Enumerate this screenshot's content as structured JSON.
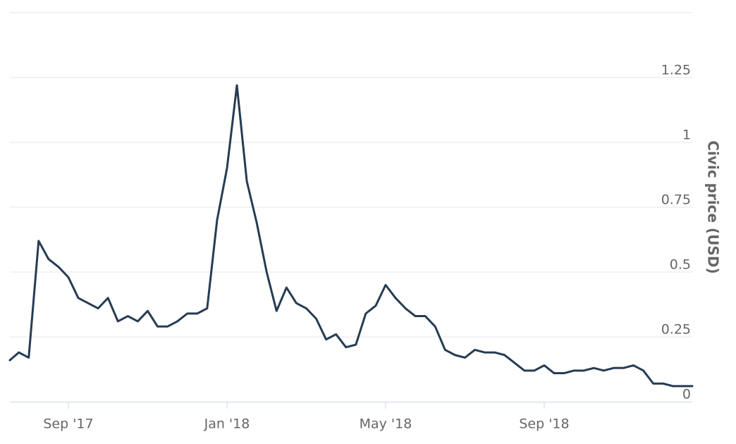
{
  "chart_data": {
    "type": "line",
    "y_axis_label": "Civic price (USD)",
    "categories": [
      null,
      null,
      null,
      null,
      null,
      null,
      "Sep '17",
      null,
      null,
      null,
      null,
      null,
      null,
      null,
      null,
      null,
      null,
      null,
      null,
      null,
      null,
      null,
      "Jan '18",
      null,
      null,
      null,
      null,
      null,
      null,
      null,
      null,
      null,
      null,
      null,
      null,
      null,
      null,
      null,
      "May '18",
      null,
      null,
      null,
      null,
      null,
      null,
      null,
      null,
      null,
      null,
      null,
      null,
      null,
      null,
      null,
      "Sep '18",
      null,
      null,
      null,
      null,
      null,
      null,
      null,
      null,
      null,
      null,
      null,
      null,
      null,
      null,
      null
    ],
    "series": [
      {
        "name": "Civic price (USD)",
        "color": "#263c53",
        "values": [
          0.16,
          0.19,
          0.17,
          0.62,
          0.55,
          0.52,
          0.48,
          0.4,
          0.38,
          0.36,
          0.4,
          0.31,
          0.33,
          0.31,
          0.35,
          0.29,
          0.29,
          0.31,
          0.34,
          0.34,
          0.36,
          0.7,
          0.9,
          1.22,
          0.85,
          0.69,
          0.5,
          0.35,
          0.44,
          0.38,
          0.36,
          0.32,
          0.24,
          0.26,
          0.21,
          0.22,
          0.34,
          0.37,
          0.45,
          0.4,
          0.36,
          0.33,
          0.33,
          0.29,
          0.2,
          0.18,
          0.17,
          0.2,
          0.19,
          0.19,
          0.18,
          0.15,
          0.12,
          0.12,
          0.14,
          0.11,
          0.11,
          0.12,
          0.12,
          0.13,
          0.12,
          0.13,
          0.13,
          0.14,
          0.12,
          0.07,
          0.07,
          0.06,
          0.06,
          0.06
        ]
      }
    ],
    "ylim": [
      0,
      1.5
    ],
    "yticks": [
      0,
      0.25,
      0.5,
      0.75,
      1,
      1.25
    ],
    "y_axis_side": "right",
    "grid": true
  }
}
